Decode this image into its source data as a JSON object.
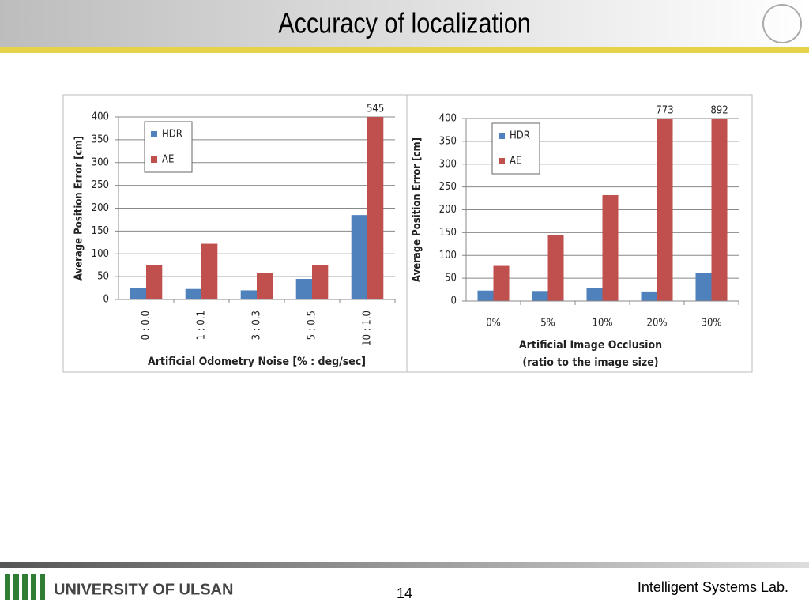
{
  "slide": {
    "title": "Accuracy of localization",
    "logo": "UNIVERSITY OF ULSAN",
    "page_number": "14",
    "lab": "Intelligent Systems Lab."
  },
  "chart_data": [
    {
      "type": "bar",
      "ylabel": "Average Position Error  [cm]",
      "xlabel": [
        "Artificial Odometry Noise [% : deg/sec]"
      ],
      "categories": [
        "0 : 0.0",
        "1 : 0.1",
        "3 : 0.3",
        "5 : 0.5",
        "10 : 1.0"
      ],
      "xtick_rotation": -90,
      "series": [
        {
          "name": "HDR",
          "color": "#4f81bd",
          "values": [
            25,
            23,
            20,
            45,
            185
          ]
        },
        {
          "name": "AE",
          "color": "#c0504d",
          "values": [
            76,
            122,
            58,
            76,
            545
          ],
          "value_labels": [
            null,
            null,
            null,
            null,
            "545"
          ]
        }
      ],
      "ylim": [
        0,
        400
      ],
      "yticks": [
        0,
        50,
        100,
        150,
        200,
        250,
        300,
        350,
        400
      ],
      "grid": true,
      "legend": "top-left"
    },
    {
      "type": "bar",
      "ylabel": "Average Position Error  [cm]",
      "xlabel": [
        "Artificial Image Occlusion",
        "(ratio to the image size)"
      ],
      "categories": [
        "0%",
        "5%",
        "10%",
        "20%",
        "30%"
      ],
      "xtick_rotation": 0,
      "series": [
        {
          "name": "HDR",
          "color": "#4f81bd",
          "values": [
            23,
            22,
            28,
            21,
            62
          ]
        },
        {
          "name": "AE",
          "color": "#c0504d",
          "values": [
            77,
            144,
            232,
            773,
            892
          ],
          "value_labels": [
            null,
            null,
            null,
            "773",
            "892"
          ]
        }
      ],
      "ylim": [
        0,
        400
      ],
      "yticks": [
        0,
        50,
        100,
        150,
        200,
        250,
        300,
        350,
        400
      ],
      "grid": true,
      "legend": "top-left"
    }
  ]
}
